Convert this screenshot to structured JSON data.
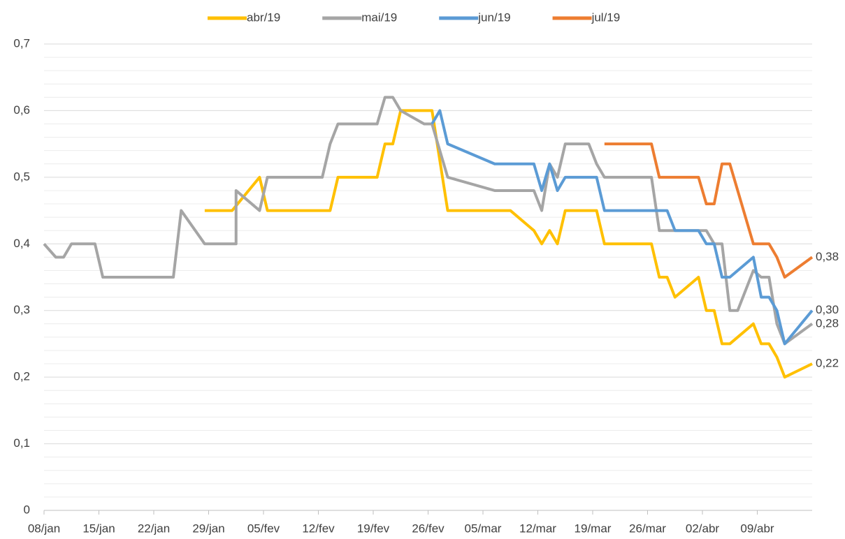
{
  "chart_data": {
    "type": "line",
    "xlim": [
      0,
      98
    ],
    "xticks": [
      {
        "value": 0,
        "label": "08/jan"
      },
      {
        "value": 7,
        "label": "15/jan"
      },
      {
        "value": 14,
        "label": "22/jan"
      },
      {
        "value": 21,
        "label": "29/jan"
      },
      {
        "value": 28,
        "label": "05/fev"
      },
      {
        "value": 35,
        "label": "12/fev"
      },
      {
        "value": 42,
        "label": "19/fev"
      },
      {
        "value": 49,
        "label": "26/fev"
      },
      {
        "value": 56,
        "label": "05/mar"
      },
      {
        "value": 63,
        "label": "12/mar"
      },
      {
        "value": 70,
        "label": "19/mar"
      },
      {
        "value": 77,
        "label": "26/mar"
      },
      {
        "value": 84,
        "label": "02/abr"
      },
      {
        "value": 91,
        "label": "09/abr"
      }
    ],
    "ylim": [
      0,
      0.7
    ],
    "yticks": [
      0,
      {
        "value": 0.1,
        "label": "0,1"
      },
      {
        "value": 0.2,
        "label": "0,2"
      },
      {
        "value": 0.3,
        "label": "0,3"
      },
      {
        "value": 0.4,
        "label": "0,4"
      },
      {
        "value": 0.5,
        "label": "0,5"
      },
      {
        "value": 0.6,
        "label": "0,6"
      },
      {
        "value": 0.7,
        "label": "0,7"
      }
    ],
    "grid": true,
    "legend": "top",
    "series": [
      {
        "name": "abr/19",
        "color": "#FFC000",
        "x": [
          20.5,
          24,
          27.5,
          28.5,
          36.5,
          37.5,
          42.5,
          43.5,
          44.5,
          45.5,
          49.5,
          51.5,
          59.5,
          62.5,
          63.5,
          64.5,
          65.5,
          66.5,
          70.5,
          71.5,
          77.5,
          78.5,
          79.5,
          80.5,
          83.5,
          84.5,
          85.5,
          86.5,
          87.5,
          90.5,
          91.5,
          92.5,
          93.5,
          94.5,
          98
        ],
        "values": [
          0.45,
          0.45,
          0.5,
          0.45,
          0.45,
          0.5,
          0.5,
          0.55,
          0.55,
          0.6,
          0.6,
          0.45,
          0.45,
          0.42,
          0.4,
          0.42,
          0.4,
          0.45,
          0.45,
          0.4,
          0.4,
          0.35,
          0.35,
          0.32,
          0.35,
          0.3,
          0.3,
          0.25,
          0.25,
          0.28,
          0.25,
          0.25,
          0.23,
          0.2,
          0.22
        ],
        "value_labels": [
          null,
          null,
          null,
          null,
          null,
          null,
          null,
          null,
          null,
          null,
          null,
          null,
          null,
          null,
          null,
          null,
          null,
          null,
          null,
          null,
          null,
          null,
          null,
          null,
          null,
          null,
          null,
          null,
          null,
          null,
          null,
          null,
          null,
          null,
          "0,22"
        ]
      },
      {
        "name": "mai/19",
        "color": "#A5A5A5",
        "x": [
          0,
          1.5,
          2.5,
          3.5,
          6.5,
          7.5,
          16.5,
          17.5,
          20.5,
          24.5,
          24.5,
          27.5,
          28.5,
          35.5,
          36.5,
          37.5,
          42.5,
          43.5,
          44.5,
          45.5,
          48.5,
          49.5,
          51.5,
          57.5,
          62.5,
          63.5,
          64.5,
          65.5,
          66.5,
          69.5,
          70.5,
          71.5,
          77.5,
          78.5,
          80.5,
          84.5,
          85.5,
          86.5,
          87.5,
          88.5,
          90.5,
          91.5,
          92.5,
          93.5,
          94.5,
          98
        ],
        "values": [
          0.4,
          0.38,
          0.38,
          0.4,
          0.4,
          0.35,
          0.35,
          0.45,
          0.4,
          0.4,
          0.48,
          0.45,
          0.5,
          0.5,
          0.55,
          0.58,
          0.58,
          0.62,
          0.62,
          0.6,
          0.58,
          0.58,
          0.5,
          0.48,
          0.48,
          0.45,
          0.52,
          0.5,
          0.55,
          0.55,
          0.52,
          0.5,
          0.5,
          0.42,
          0.42,
          0.42,
          0.4,
          0.4,
          0.3,
          0.3,
          0.36,
          0.35,
          0.35,
          0.28,
          0.25,
          0.28
        ],
        "value_labels": [
          null,
          null,
          null,
          null,
          null,
          null,
          null,
          null,
          null,
          null,
          null,
          null,
          null,
          null,
          null,
          null,
          null,
          null,
          null,
          null,
          null,
          null,
          null,
          null,
          null,
          null,
          null,
          null,
          null,
          null,
          null,
          null,
          null,
          null,
          null,
          null,
          null,
          null,
          null,
          null,
          null,
          null,
          null,
          null,
          null,
          "0,28"
        ]
      },
      {
        "name": "jun/19",
        "color": "#5B9BD5",
        "x": [
          49.5,
          50.5,
          51.5,
          57.5,
          62.5,
          63.5,
          64.5,
          65.5,
          66.5,
          70.5,
          71.5,
          79.5,
          80.5,
          83.5,
          84.5,
          85.5,
          86.5,
          87.5,
          90.5,
          91.5,
          92.5,
          93.5,
          94.5,
          98
        ],
        "values": [
          0.58,
          0.6,
          0.55,
          0.52,
          0.52,
          0.48,
          0.52,
          0.48,
          0.5,
          0.5,
          0.45,
          0.45,
          0.42,
          0.42,
          0.4,
          0.4,
          0.35,
          0.35,
          0.38,
          0.32,
          0.32,
          0.3,
          0.25,
          0.3
        ],
        "value_labels": [
          null,
          null,
          null,
          null,
          null,
          null,
          null,
          null,
          null,
          null,
          null,
          null,
          null,
          null,
          null,
          null,
          null,
          null,
          null,
          null,
          null,
          null,
          null,
          "0,30"
        ]
      },
      {
        "name": "jul/19",
        "color": "#ED7D31",
        "x": [
          71.5,
          77.5,
          78.5,
          83.5,
          84.5,
          85.5,
          86.5,
          87.5,
          90.5,
          92.5,
          93.5,
          94.5,
          98
        ],
        "values": [
          0.55,
          0.55,
          0.5,
          0.5,
          0.46,
          0.46,
          0.52,
          0.52,
          0.4,
          0.4,
          0.38,
          0.35,
          0.38
        ],
        "value_labels": [
          null,
          null,
          null,
          null,
          null,
          null,
          null,
          null,
          null,
          null,
          null,
          null,
          "0,38"
        ]
      }
    ]
  }
}
